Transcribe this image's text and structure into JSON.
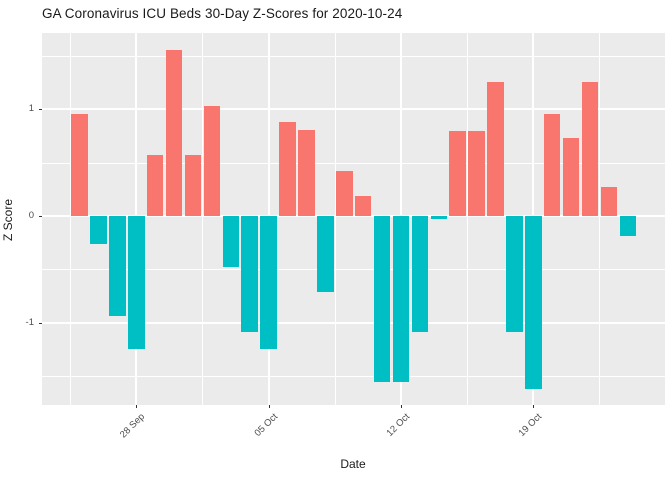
{
  "title": "GA Coronavirus ICU Beds 30-Day Z-Scores for 2020-10-24",
  "chart_data": {
    "type": "bar",
    "title": "GA Coronavirus ICU Beds 30-Day Z-Scores for 2020-10-24",
    "xlabel": "Date",
    "ylabel": "Z Score",
    "legend_position": "none",
    "grid": "on",
    "panel_background": "#EBEBEB",
    "grid_color": "#FFFFFF",
    "positive_color": "#F8766D",
    "negative_color": "#00BFC4",
    "tick_label_color": "#4D4D4D",
    "ylim": [
      -1.77,
      1.71
    ],
    "y_major_ticks": [
      1,
      0,
      -1
    ],
    "y_tick_labels": [
      "1",
      "0",
      "-1"
    ],
    "y_minor_ticks": [
      1.5,
      0.5,
      -0.5,
      -1.5
    ],
    "x_tick_labels": [
      "28 Sep",
      "05 Oct",
      "12 Oct",
      "19 Oct"
    ],
    "x_major_tick_day_index": [
      3,
      10,
      17,
      24
    ],
    "x_minor_tick_day_index": [
      -0.5,
      6.5,
      13.5,
      20.5,
      27.5
    ],
    "dates": [
      "2020-09-25",
      "2020-09-26",
      "2020-09-27",
      "2020-09-28",
      "2020-09-29",
      "2020-09-30",
      "2020-10-01",
      "2020-10-02",
      "2020-10-03",
      "2020-10-04",
      "2020-10-05",
      "2020-10-06",
      "2020-10-07",
      "2020-10-08",
      "2020-10-09",
      "2020-10-10",
      "2020-10-11",
      "2020-10-12",
      "2020-10-13",
      "2020-10-14",
      "2020-10-15",
      "2020-10-16",
      "2020-10-17",
      "2020-10-18",
      "2020-10-19",
      "2020-10-20",
      "2020-10-21",
      "2020-10-22",
      "2020-10-23",
      "2020-10-24"
    ],
    "values": [
      0.96,
      -0.26,
      -0.94,
      -1.25,
      0.57,
      1.56,
      0.57,
      1.03,
      -0.48,
      -1.09,
      -1.25,
      0.88,
      0.81,
      -0.71,
      0.42,
      0.19,
      -1.55,
      -1.55,
      -1.09,
      -0.03,
      0.8,
      0.8,
      1.26,
      -1.09,
      -1.62,
      0.96,
      0.73,
      1.26,
      0.27,
      -0.19
    ]
  }
}
